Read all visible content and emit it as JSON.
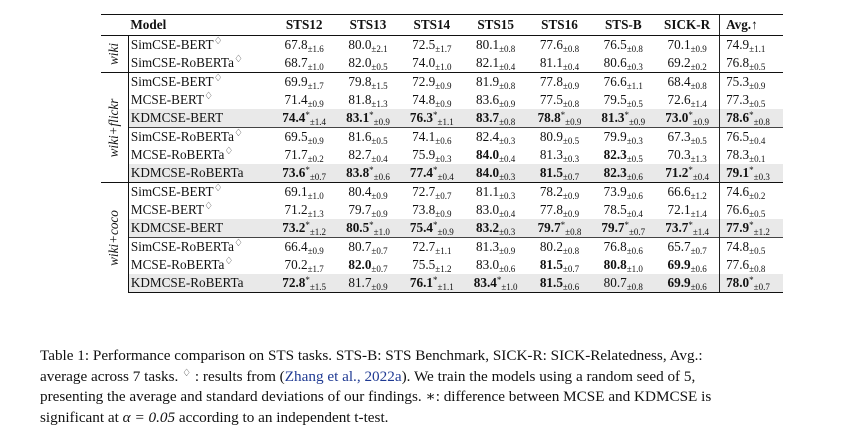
{
  "table": {
    "headers": [
      "Model",
      "STS12",
      "STS13",
      "STS14",
      "STS15",
      "STS16",
      "STS-B",
      "SICK-R",
      "Avg.↑"
    ],
    "diamond": "♢",
    "sections": [
      {
        "label": "wiki",
        "groups": [
          {
            "rows": [
              {
                "model": "SimCSE-BERT",
                "sup": "♢",
                "kd": false,
                "cells": [
                  {
                    "v": "67.8",
                    "s": "±1.6"
                  },
                  {
                    "v": "80.0",
                    "s": "±2.1"
                  },
                  {
                    "v": "72.5",
                    "s": "±1.7"
                  },
                  {
                    "v": "80.1",
                    "s": "±0.8"
                  },
                  {
                    "v": "77.6",
                    "s": "±0.8"
                  },
                  {
                    "v": "76.5",
                    "s": "±0.8"
                  },
                  {
                    "v": "70.1",
                    "s": "±0.9"
                  },
                  {
                    "v": "74.9",
                    "s": "±1.1"
                  }
                ]
              },
              {
                "model": "SimCSE-RoBERTa",
                "sup": "♢",
                "kd": false,
                "cells": [
                  {
                    "v": "68.7",
                    "s": "±1.0"
                  },
                  {
                    "v": "82.0",
                    "s": "±0.5"
                  },
                  {
                    "v": "74.0",
                    "s": "±1.0"
                  },
                  {
                    "v": "82.1",
                    "s": "±0.4"
                  },
                  {
                    "v": "81.1",
                    "s": "±0.4"
                  },
                  {
                    "v": "80.6",
                    "s": "±0.3"
                  },
                  {
                    "v": "69.2",
                    "s": "±0.2"
                  },
                  {
                    "v": "76.8",
                    "s": "±0.5"
                  }
                ]
              }
            ]
          }
        ]
      },
      {
        "label": "wiki+flickr",
        "groups": [
          {
            "rows": [
              {
                "model": "SimCSE-BERT",
                "sup": "♢",
                "kd": false,
                "cells": [
                  {
                    "v": "69.9",
                    "s": "±1.7"
                  },
                  {
                    "v": "79.8",
                    "s": "±1.5"
                  },
                  {
                    "v": "72.9",
                    "s": "±0.9"
                  },
                  {
                    "v": "81.9",
                    "s": "±0.8"
                  },
                  {
                    "v": "77.8",
                    "s": "±0.9"
                  },
                  {
                    "v": "76.6",
                    "s": "±1.1"
                  },
                  {
                    "v": "68.4",
                    "s": "±0.8"
                  },
                  {
                    "v": "75.3",
                    "s": "±0.9"
                  }
                ]
              },
              {
                "model": "MCSE-BERT",
                "sup": "♢",
                "kd": false,
                "cells": [
                  {
                    "v": "71.4",
                    "s": "±0.9"
                  },
                  {
                    "v": "81.8",
                    "s": "±1.3"
                  },
                  {
                    "v": "74.8",
                    "s": "±0.9"
                  },
                  {
                    "v": "83.6",
                    "s": "±0.9"
                  },
                  {
                    "v": "77.5",
                    "s": "±0.8"
                  },
                  {
                    "v": "79.5",
                    "s": "±0.5"
                  },
                  {
                    "v": "72.6",
                    "s": "±1.4"
                  },
                  {
                    "v": "77.3",
                    "s": "±0.5"
                  }
                ]
              },
              {
                "model": "KDMCSE-BERT",
                "sup": "",
                "kd": true,
                "cells": [
                  {
                    "v": "74.4",
                    "a": "*",
                    "s": "±1.4",
                    "b": true
                  },
                  {
                    "v": "83.1",
                    "a": "*",
                    "s": "±0.9",
                    "b": true
                  },
                  {
                    "v": "76.3",
                    "a": "*",
                    "s": "±1.1",
                    "b": true
                  },
                  {
                    "v": "83.7",
                    "s": "±0.8",
                    "b": true
                  },
                  {
                    "v": "78.8",
                    "a": "*",
                    "s": "±0.9",
                    "b": true
                  },
                  {
                    "v": "81.3",
                    "a": "*",
                    "s": "±0.9",
                    "b": true
                  },
                  {
                    "v": "73.0",
                    "a": "*",
                    "s": "±0.9",
                    "b": true
                  },
                  {
                    "v": "78.6",
                    "a": "*",
                    "s": "±0.8",
                    "b": true
                  }
                ]
              }
            ]
          },
          {
            "rows": [
              {
                "model": "SimCSE-RoBERTa",
                "sup": "♢",
                "kd": false,
                "cells": [
                  {
                    "v": "69.5",
                    "s": "±0.9"
                  },
                  {
                    "v": "81.6",
                    "s": "±0.5"
                  },
                  {
                    "v": "74.1",
                    "s": "±0.6"
                  },
                  {
                    "v": "82.4",
                    "s": "±0.3"
                  },
                  {
                    "v": "80.9",
                    "s": "±0.5"
                  },
                  {
                    "v": "79.9",
                    "s": "±0.3"
                  },
                  {
                    "v": "67.3",
                    "s": "±0.5"
                  },
                  {
                    "v": "76.5",
                    "s": "±0.4"
                  }
                ]
              },
              {
                "model": "MCSE-RoBERTa",
                "sup": "♢",
                "kd": false,
                "cells": [
                  {
                    "v": "71.7",
                    "s": "±0.2"
                  },
                  {
                    "v": "82.7",
                    "s": "±0.4"
                  },
                  {
                    "v": "75.9",
                    "s": "±0.3"
                  },
                  {
                    "v": "84.0",
                    "s": "±0.4",
                    "b": true
                  },
                  {
                    "v": "81.3",
                    "s": "±0.3"
                  },
                  {
                    "v": "82.3",
                    "s": "±0.5",
                    "b": true
                  },
                  {
                    "v": "70.3",
                    "s": "±1.3"
                  },
                  {
                    "v": "78.3",
                    "s": "±0.1"
                  }
                ]
              },
              {
                "model": "KDMCSE-RoBERTa",
                "sup": "",
                "kd": true,
                "cells": [
                  {
                    "v": "73.6",
                    "a": "*",
                    "s": "±0.7",
                    "b": true
                  },
                  {
                    "v": "83.8",
                    "a": "*",
                    "s": "±0.6",
                    "b": true
                  },
                  {
                    "v": "77.4",
                    "a": "*",
                    "s": "±0.4",
                    "b": true
                  },
                  {
                    "v": "84.0",
                    "s": "±0.3",
                    "b": true
                  },
                  {
                    "v": "81.5",
                    "s": "±0.7",
                    "b": true
                  },
                  {
                    "v": "82.3",
                    "s": "±0.6",
                    "b": true
                  },
                  {
                    "v": "71.2",
                    "a": "*",
                    "s": "±0.4",
                    "b": true
                  },
                  {
                    "v": "79.1",
                    "a": "*",
                    "s": "±0.3",
                    "b": true
                  }
                ]
              }
            ]
          }
        ]
      },
      {
        "label": "wiki+coco",
        "groups": [
          {
            "rows": [
              {
                "model": "SimCSE-BERT",
                "sup": "♢",
                "kd": false,
                "cells": [
                  {
                    "v": "69.1",
                    "s": "±1.0"
                  },
                  {
                    "v": "80.4",
                    "s": "±0.9"
                  },
                  {
                    "v": "72.7",
                    "s": "±0.7"
                  },
                  {
                    "v": "81.1",
                    "s": "±0.3"
                  },
                  {
                    "v": "78.2",
                    "s": "±0.9"
                  },
                  {
                    "v": "73.9",
                    "s": "±0.6"
                  },
                  {
                    "v": "66.6",
                    "s": "±1.2"
                  },
                  {
                    "v": "74.6",
                    "s": "±0.2"
                  }
                ]
              },
              {
                "model": "MCSE-BERT",
                "sup": "♢",
                "kd": false,
                "cells": [
                  {
                    "v": "71.2",
                    "s": "±1.3"
                  },
                  {
                    "v": "79.7",
                    "s": "±0.9"
                  },
                  {
                    "v": "73.8",
                    "s": "±0.9"
                  },
                  {
                    "v": "83.0",
                    "s": "±0.4"
                  },
                  {
                    "v": "77.8",
                    "s": "±0.9"
                  },
                  {
                    "v": "78.5",
                    "s": "±0.4"
                  },
                  {
                    "v": "72.1",
                    "s": "±1.4"
                  },
                  {
                    "v": "76.6",
                    "s": "±0.5"
                  }
                ]
              },
              {
                "model": "KDMCSE-BERT",
                "sup": "",
                "kd": true,
                "cells": [
                  {
                    "v": "73.2",
                    "a": "*",
                    "s": "±1.2",
                    "b": true
                  },
                  {
                    "v": "80.5",
                    "a": "*",
                    "s": "±1.0",
                    "b": true
                  },
                  {
                    "v": "75.4",
                    "a": "*",
                    "s": "±0.9",
                    "b": true
                  },
                  {
                    "v": "83.2",
                    "s": "±0.3",
                    "b": true
                  },
                  {
                    "v": "79.7",
                    "a": "*",
                    "s": "±0.8",
                    "b": true
                  },
                  {
                    "v": "79.7",
                    "a": "*",
                    "s": "±0.7",
                    "b": true
                  },
                  {
                    "v": "73.7",
                    "a": "*",
                    "s": "±1.4",
                    "b": true
                  },
                  {
                    "v": "77.9",
                    "a": "*",
                    "s": "±1.2",
                    "b": true
                  }
                ]
              }
            ]
          },
          {
            "rows": [
              {
                "model": "SimCSE-RoBERTa",
                "sup": "♢",
                "kd": false,
                "cells": [
                  {
                    "v": "66.4",
                    "s": "±0.9"
                  },
                  {
                    "v": "80.7",
                    "s": "±0.7"
                  },
                  {
                    "v": "72.7",
                    "s": "±1.1"
                  },
                  {
                    "v": "81.3",
                    "s": "±0.9"
                  },
                  {
                    "v": "80.2",
                    "s": "±0.8"
                  },
                  {
                    "v": "76.8",
                    "s": "±0.6"
                  },
                  {
                    "v": "65.7",
                    "s": "±0.7"
                  },
                  {
                    "v": "74.8",
                    "s": "±0.5"
                  }
                ]
              },
              {
                "model": "MCSE-RoBERTa",
                "sup": "♢",
                "kd": false,
                "cells": [
                  {
                    "v": "70.2",
                    "s": "±1.7"
                  },
                  {
                    "v": "82.0",
                    "s": "±0.7",
                    "b": true
                  },
                  {
                    "v": "75.5",
                    "s": "±1.2"
                  },
                  {
                    "v": "83.0",
                    "s": "±0.6"
                  },
                  {
                    "v": "81.5",
                    "s": "±0.7",
                    "b": true
                  },
                  {
                    "v": "80.8",
                    "s": "±1.0",
                    "b": true
                  },
                  {
                    "v": "69.9",
                    "s": "±0.6",
                    "b": true
                  },
                  {
                    "v": "77.6",
                    "s": "±0.8"
                  }
                ]
              },
              {
                "model": "KDMCSE-RoBERTa",
                "sup": "",
                "kd": true,
                "cells": [
                  {
                    "v": "72.8",
                    "a": "*",
                    "s": "±1.5",
                    "b": true
                  },
                  {
                    "v": "81.7",
                    "s": "±0.9"
                  },
                  {
                    "v": "76.1",
                    "a": "*",
                    "s": "±1.1",
                    "b": true
                  },
                  {
                    "v": "83.4",
                    "a": "*",
                    "s": "±1.0",
                    "b": true
                  },
                  {
                    "v": "81.5",
                    "s": "±0.6",
                    "b": true
                  },
                  {
                    "v": "80.7",
                    "s": "±0.8"
                  },
                  {
                    "v": "69.9",
                    "s": "±0.6",
                    "b": true
                  },
                  {
                    "v": "78.0",
                    "a": "*",
                    "s": "±0.7",
                    "b": true
                  }
                ]
              }
            ]
          }
        ]
      }
    ]
  },
  "caption": {
    "l1": "Table 1: Performance comparison on STS tasks. STS-B: STS Benchmark, SICK-R: SICK-Relatedness, Avg.:",
    "l2_pre": "average across 7 tasks.",
    "l2_dia": "♢",
    "l2_mid": ": results from (",
    "l2_cite": "Zhang et al., 2022a",
    "l2_post": "). We train the models using a random seed of 5,",
    "l3": "presenting the average and standard deviations of our findings.",
    "l3_ast": "∗",
    "l3_post": ": difference between MCSE and KDMCSE is",
    "l4_pre": "significant at",
    "l4_alpha": "α = 0.05",
    "l4_post": "according to an independent t-test."
  }
}
